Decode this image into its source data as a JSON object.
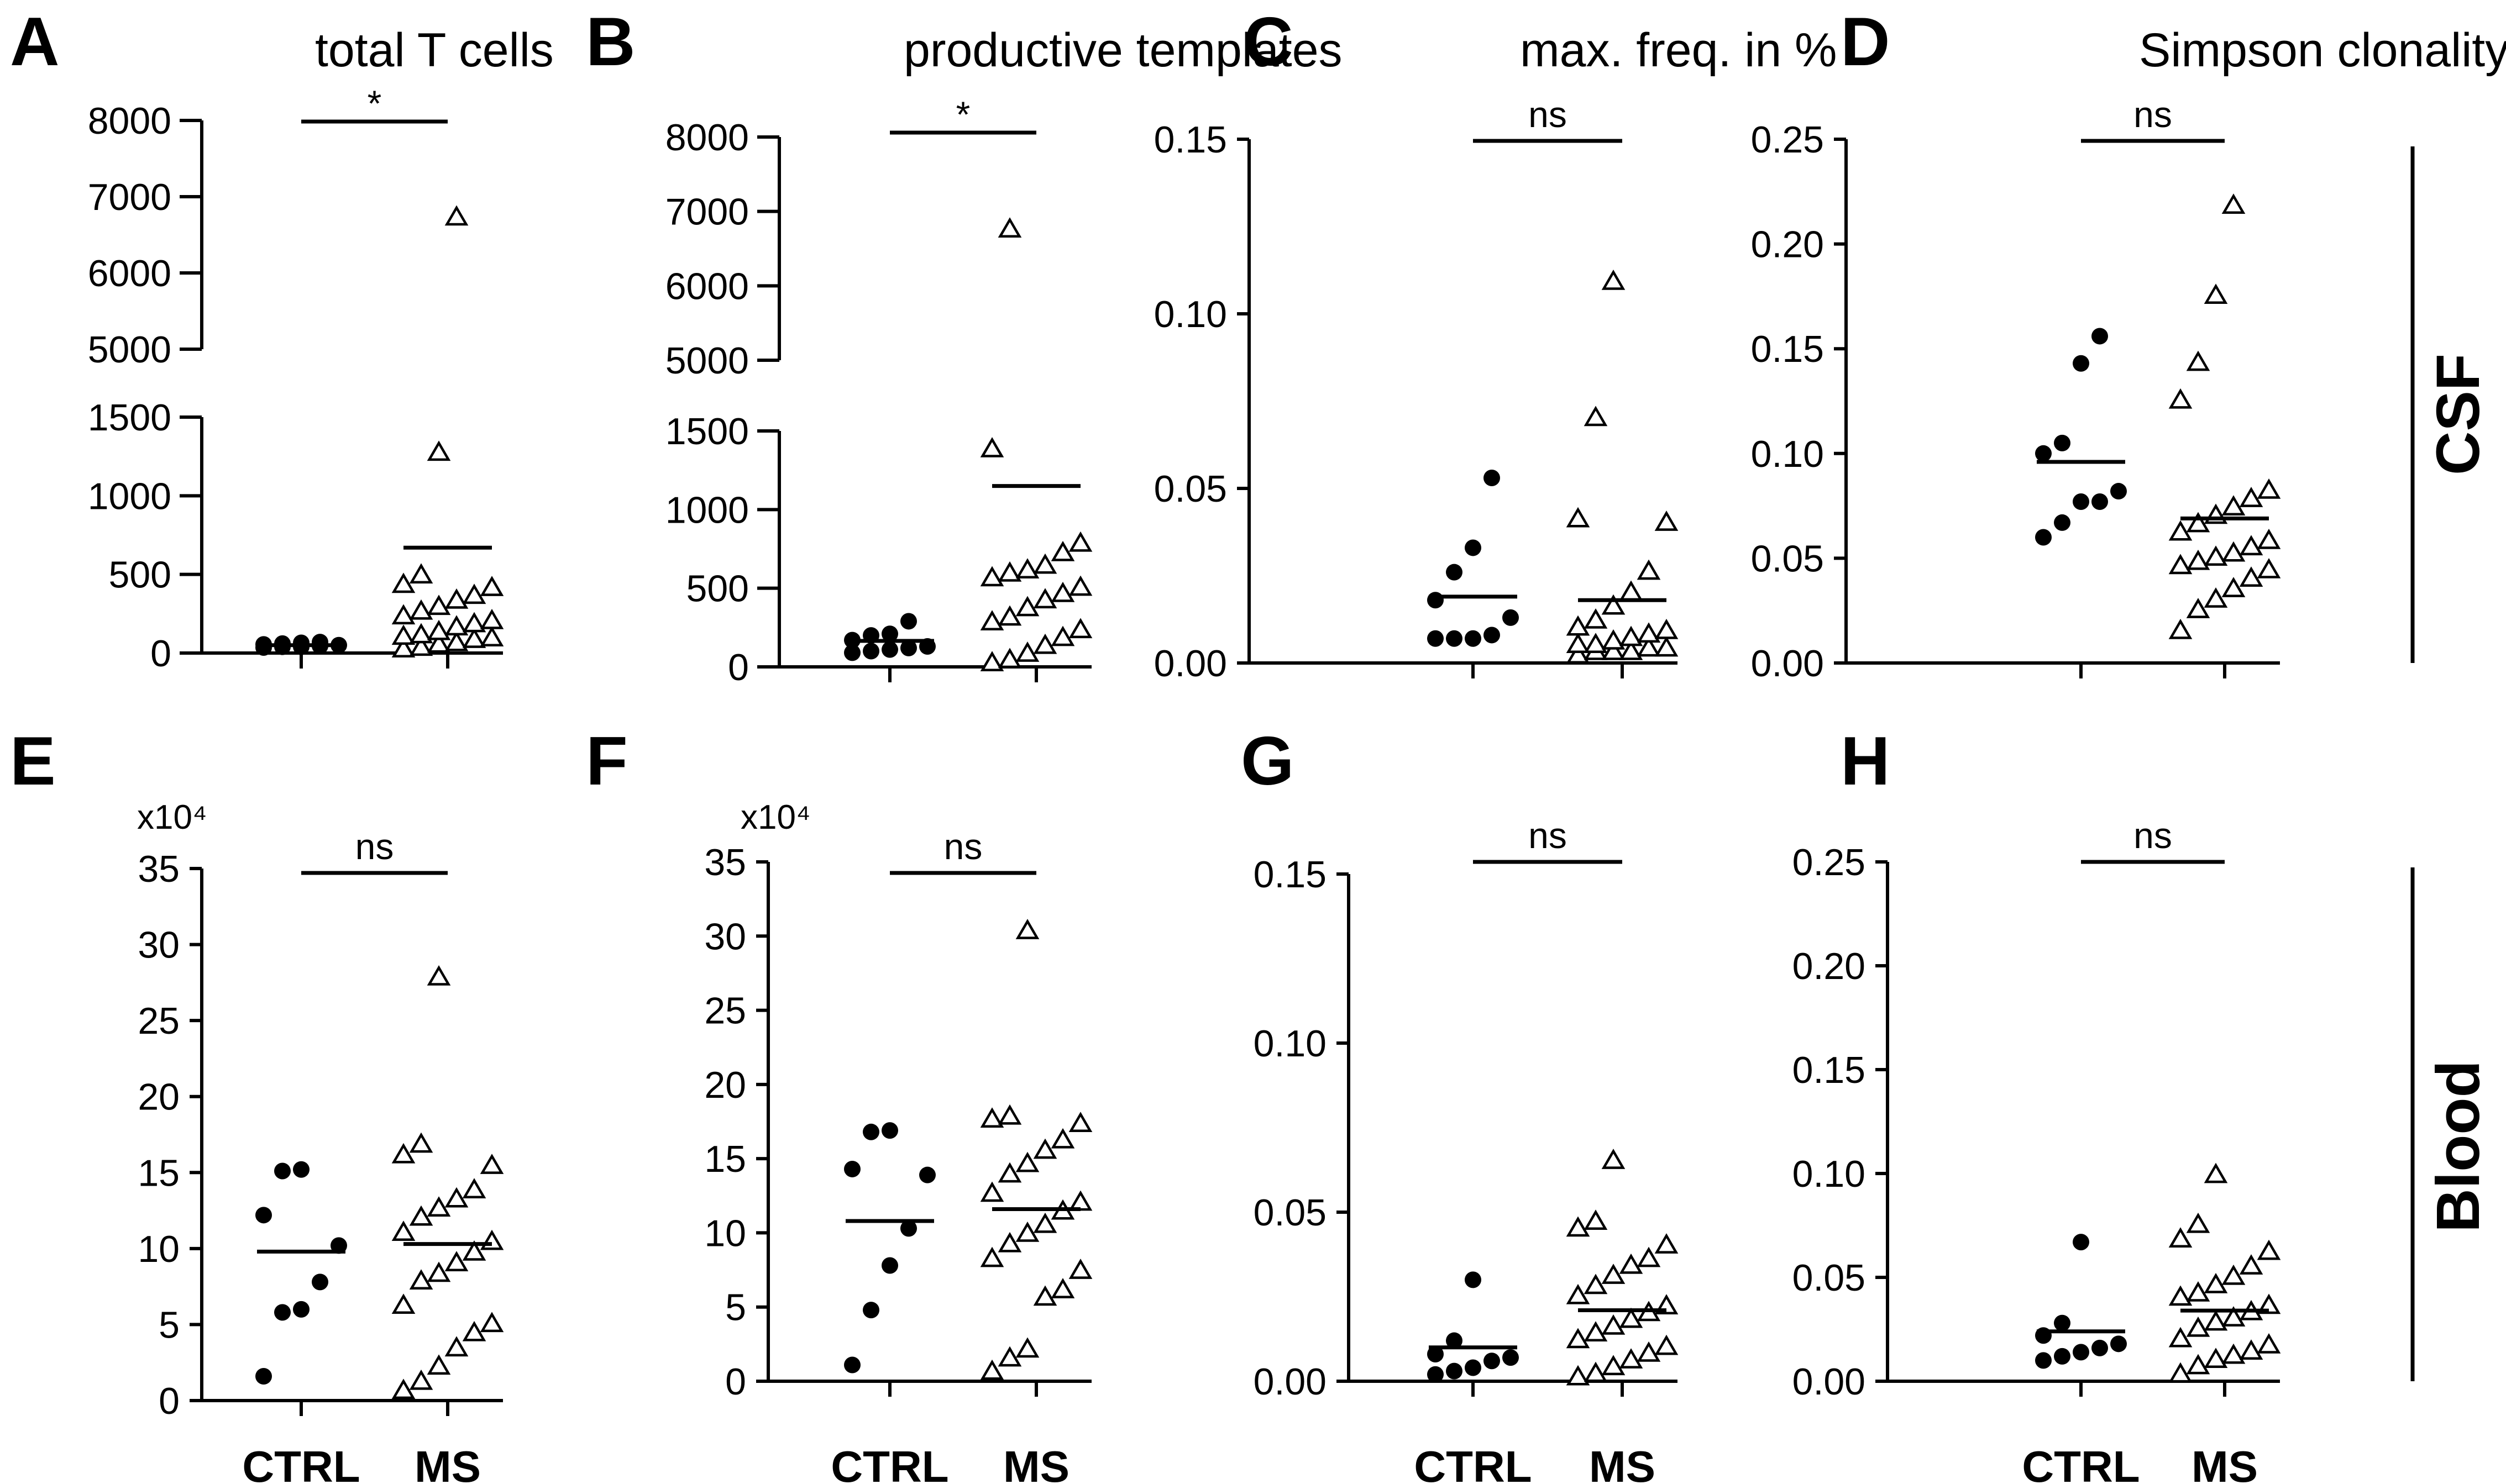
{
  "row_labels": [
    "CSF",
    "Blood"
  ],
  "groups": [
    "CTRL",
    "MS"
  ],
  "chart_data": [
    {
      "type": "scatter",
      "panel": "A",
      "title": "total T cells",
      "row": "CSF",
      "categories": [
        "CTRL",
        "MS"
      ],
      "axis": "broken",
      "broken_ylim": [
        [
          0,
          1500
        ],
        [
          5000,
          8000
        ]
      ],
      "yticks_low": [
        "0",
        "500",
        "1000",
        "1500"
      ],
      "yticks_high": [
        "5000",
        "6000",
        "7000",
        "8000"
      ],
      "multiplier": "",
      "series": [
        {
          "name": "CTRL",
          "marker": "filled-circle",
          "values": [
            55,
            70,
            40,
            65,
            35,
            50,
            40,
            45,
            60
          ]
        },
        {
          "name": "MS",
          "marker": "open-triangle",
          "values": [
            6720,
            1270,
            490,
            430,
            410,
            360,
            330,
            290,
            260,
            230,
            200,
            180,
            160,
            130,
            110,
            100,
            90,
            80,
            60,
            50,
            30,
            20
          ]
        }
      ],
      "means": [
        50,
        670
      ],
      "significance": "*"
    },
    {
      "type": "scatter",
      "panel": "B",
      "title": "productive templates",
      "row": "CSF",
      "categories": [
        "CTRL",
        "MS"
      ],
      "axis": "broken",
      "broken_ylim": [
        [
          0,
          1500
        ],
        [
          5000,
          8000
        ]
      ],
      "yticks_low": [
        "0",
        "500",
        "1000",
        "1500"
      ],
      "yticks_high": [
        "5000",
        "6000",
        "7000",
        "8000"
      ],
      "multiplier": "",
      "series": [
        {
          "name": "CTRL",
          "marker": "filled-circle",
          "values": [
            290,
            210,
            200,
            170,
            130,
            120,
            110,
            100,
            90
          ]
        },
        {
          "name": "MS",
          "marker": "open-triangle",
          "values": [
            6750,
            1380,
            780,
            720,
            640,
            610,
            590,
            560,
            500,
            460,
            420,
            370,
            310,
            280,
            230,
            180,
            130,
            80,
            40,
            20
          ]
        }
      ],
      "means": [
        165,
        1150
      ],
      "significance": "*"
    },
    {
      "type": "scatter",
      "panel": "C",
      "title": "max. freq. in %",
      "row": "CSF",
      "categories": [
        "CTRL",
        "MS"
      ],
      "axis": "linear",
      "ylim": [
        0,
        0.15
      ],
      "yticks": [
        "0.00",
        "0.05",
        "0.10",
        "0.15"
      ],
      "multiplier": "",
      "series": [
        {
          "name": "CTRL",
          "marker": "filled-circle",
          "values": [
            0.053,
            0.033,
            0.026,
            0.018,
            0.013,
            0.008,
            0.007,
            0.007,
            0.007
          ]
        },
        {
          "name": "MS",
          "marker": "open-triangle",
          "values": [
            0.109,
            0.07,
            0.041,
            0.04,
            0.026,
            0.02,
            0.016,
            0.012,
            0.01,
            0.009,
            0.008,
            0.007,
            0.006,
            0.005,
            0.005,
            0.004,
            0.004,
            0.003,
            0.003,
            0.003,
            0.002
          ]
        }
      ],
      "means": [
        0.019,
        0.018
      ],
      "significance": "ns"
    },
    {
      "type": "scatter",
      "panel": "D",
      "title": "Simpson clonality",
      "row": "CSF",
      "categories": [
        "CTRL",
        "MS"
      ],
      "axis": "linear",
      "ylim": [
        0,
        0.25
      ],
      "yticks": [
        "0.00",
        "0.05",
        "0.10",
        "0.15",
        "0.20",
        "0.25"
      ],
      "multiplier": "",
      "series": [
        {
          "name": "CTRL",
          "marker": "filled-circle",
          "values": [
            0.156,
            0.143,
            0.105,
            0.1,
            0.082,
            0.077,
            0.077,
            0.067,
            0.06
          ]
        },
        {
          "name": "MS",
          "marker": "open-triangle",
          "values": [
            0.218,
            0.175,
            0.143,
            0.125,
            0.082,
            0.078,
            0.074,
            0.07,
            0.066,
            0.062,
            0.058,
            0.055,
            0.052,
            0.05,
            0.048,
            0.046,
            0.044,
            0.04,
            0.035,
            0.03,
            0.025,
            0.015
          ]
        }
      ],
      "means": [
        0.096,
        0.069
      ],
      "significance": "ns"
    },
    {
      "type": "scatter",
      "panel": "E",
      "title": "",
      "row": "Blood",
      "categories": [
        "CTRL",
        "MS"
      ],
      "axis": "linear",
      "ylim": [
        0,
        35
      ],
      "yticks": [
        "0",
        "5",
        "10",
        "15",
        "20",
        "25",
        "30",
        "35"
      ],
      "multiplier": "x10⁴",
      "series": [
        {
          "name": "CTRL",
          "marker": "filled-circle",
          "values": [
            15.2,
            15.1,
            12.2,
            10.2,
            7.8,
            6.0,
            5.8,
            1.6
          ]
        },
        {
          "name": "MS",
          "marker": "open-triangle",
          "values": [
            27.8,
            16.8,
            16.1,
            15.4,
            13.8,
            13.2,
            12.6,
            12.0,
            11.0,
            10.4,
            9.7,
            9.0,
            8.3,
            7.8,
            6.2,
            5.0,
            4.4,
            3.4,
            2.2,
            1.2,
            0.6
          ]
        }
      ],
      "means": [
        9.8,
        10.3
      ],
      "significance": "ns"
    },
    {
      "type": "scatter",
      "panel": "F",
      "title": "",
      "row": "Blood",
      "categories": [
        "CTRL",
        "MS"
      ],
      "axis": "linear",
      "ylim": [
        0,
        35
      ],
      "yticks": [
        "0",
        "5",
        "10",
        "15",
        "20",
        "25",
        "30",
        "35"
      ],
      "multiplier": "x10⁴",
      "series": [
        {
          "name": "CTRL",
          "marker": "filled-circle",
          "values": [
            16.9,
            16.8,
            14.3,
            13.9,
            10.3,
            7.8,
            4.8,
            1.1
          ]
        },
        {
          "name": "MS",
          "marker": "open-triangle",
          "values": [
            30.3,
            17.8,
            17.6,
            17.3,
            16.2,
            15.5,
            14.6,
            13.9,
            12.6,
            12.0,
            11.4,
            10.5,
            9.9,
            9.2,
            8.2,
            7.4,
            6.1,
            5.6,
            2.1,
            1.5,
            0.6
          ]
        }
      ],
      "means": [
        10.8,
        11.6
      ],
      "significance": "ns"
    },
    {
      "type": "scatter",
      "panel": "G",
      "title": "",
      "row": "Blood",
      "categories": [
        "CTRL",
        "MS"
      ],
      "axis": "linear",
      "ylim": [
        0,
        0.15
      ],
      "yticks": [
        "0.00",
        "0.05",
        "0.10",
        "0.15"
      ],
      "multiplier": "",
      "series": [
        {
          "name": "CTRL",
          "marker": "filled-circle",
          "values": [
            0.03,
            0.012,
            0.008,
            0.007,
            0.006,
            0.004,
            0.003,
            0.002
          ]
        },
        {
          "name": "MS",
          "marker": "open-triangle",
          "values": [
            0.065,
            0.047,
            0.045,
            0.04,
            0.036,
            0.034,
            0.031,
            0.028,
            0.025,
            0.022,
            0.02,
            0.018,
            0.016,
            0.014,
            0.012,
            0.01,
            0.008,
            0.006,
            0.004,
            0.002,
            0.001
          ]
        }
      ],
      "means": [
        0.01,
        0.021
      ],
      "significance": "ns"
    },
    {
      "type": "scatter",
      "panel": "H",
      "title": "",
      "row": "Blood",
      "categories": [
        "CTRL",
        "MS"
      ],
      "axis": "linear",
      "ylim": [
        0,
        0.25
      ],
      "yticks": [
        "0.00",
        "0.05",
        "0.10",
        "0.15",
        "0.20",
        "0.25"
      ],
      "multiplier": "",
      "series": [
        {
          "name": "CTRL",
          "marker": "filled-circle",
          "values": [
            0.067,
            0.028,
            0.022,
            0.018,
            0.016,
            0.014,
            0.012,
            0.01
          ]
        },
        {
          "name": "MS",
          "marker": "open-triangle",
          "values": [
            0.099,
            0.075,
            0.068,
            0.062,
            0.055,
            0.05,
            0.046,
            0.042,
            0.04,
            0.036,
            0.033,
            0.03,
            0.028,
            0.025,
            0.02,
            0.017,
            0.014,
            0.012,
            0.01,
            0.007,
            0.003
          ]
        }
      ],
      "means": [
        0.024,
        0.034
      ],
      "significance": "ns"
    }
  ]
}
